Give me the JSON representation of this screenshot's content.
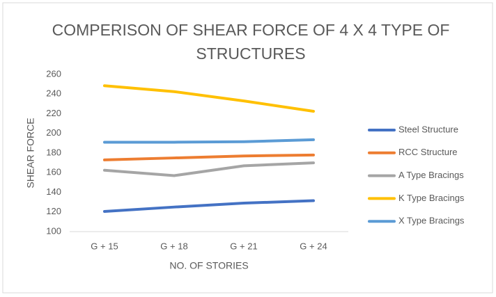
{
  "chart_data": {
    "type": "line",
    "title": "COMPERISON OF SHEAR FORCE OF 4 X 4 TYPE OF STRUCTURES",
    "x_label": "NO. OF STORIES",
    "y_label": "SHEAR FORCE",
    "categories": [
      "G + 15",
      "G + 18",
      "G + 21",
      "G + 24"
    ],
    "series": [
      {
        "name": "Steel Structure",
        "color": "#4472c4",
        "values": [
          120.5,
          125,
          129,
          131.5
        ]
      },
      {
        "name": "RCC Structure",
        "color": "#ed7d31",
        "values": [
          173,
          175,
          177,
          178
        ]
      },
      {
        "name": "A Type Bracings",
        "color": "#a5a5a5",
        "values": [
          162.5,
          157,
          167,
          170
        ]
      },
      {
        "name": "K Type Bracings",
        "color": "#ffc000",
        "values": [
          248.5,
          242.5,
          233,
          222.5
        ]
      },
      {
        "name": "X Type Bracings",
        "color": "#5b9bd5",
        "values": [
          191,
          191,
          191.5,
          193.5
        ]
      }
    ],
    "ylim": [
      100,
      260
    ],
    "yticks": [
      100,
      120,
      140,
      160,
      180,
      200,
      220,
      240,
      260
    ],
    "grid": false,
    "legend": "right"
  }
}
